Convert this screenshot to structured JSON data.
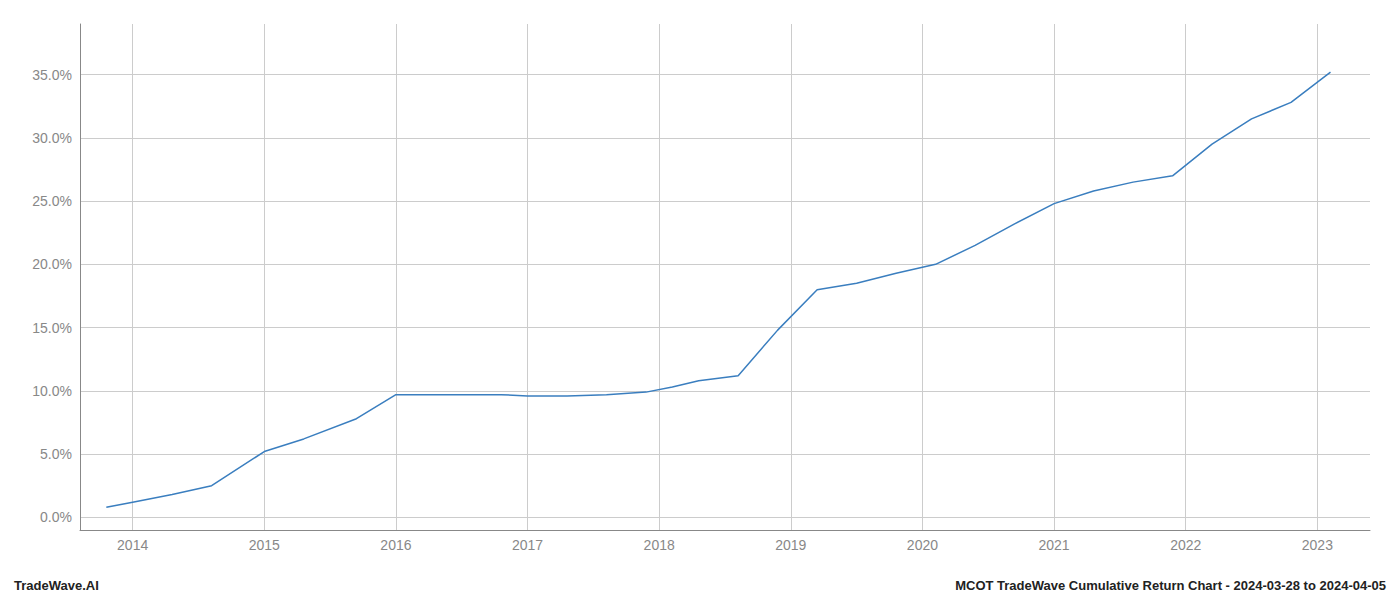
{
  "chart_data": {
    "type": "line",
    "x": [
      2013.8,
      2014.0,
      2014.3,
      2014.6,
      2015.0,
      2015.3,
      2015.7,
      2016.0,
      2016.2,
      2016.5,
      2016.8,
      2017.0,
      2017.3,
      2017.6,
      2017.9,
      2018.1,
      2018.3,
      2018.6,
      2018.9,
      2019.2,
      2019.5,
      2019.8,
      2020.1,
      2020.4,
      2020.7,
      2021.0,
      2021.3,
      2021.6,
      2021.9,
      2022.2,
      2022.5,
      2022.8,
      2023.1
    ],
    "values": [
      0.008,
      0.012,
      0.018,
      0.025,
      0.052,
      0.062,
      0.078,
      0.097,
      0.097,
      0.097,
      0.097,
      0.096,
      0.096,
      0.097,
      0.099,
      0.103,
      0.108,
      0.112,
      0.148,
      0.18,
      0.185,
      0.193,
      0.2,
      0.215,
      0.232,
      0.248,
      0.258,
      0.265,
      0.27,
      0.295,
      0.315,
      0.328,
      0.352
    ],
    "color": "#3a7ebf",
    "xlim": [
      2013.6,
      2023.4
    ],
    "ylim": [
      -0.01,
      0.39
    ],
    "xticks": [
      2014,
      2015,
      2016,
      2017,
      2018,
      2019,
      2020,
      2021,
      2022,
      2023
    ],
    "yticks": [
      {
        "value": 0.0,
        "label": "0.0%"
      },
      {
        "value": 0.05,
        "label": "5.0%"
      },
      {
        "value": 0.1,
        "label": "10.0%"
      },
      {
        "value": 0.15,
        "label": "15.0%"
      },
      {
        "value": 0.2,
        "label": "20.0%"
      },
      {
        "value": 0.25,
        "label": "25.0%"
      },
      {
        "value": 0.3,
        "label": "30.0%"
      },
      {
        "value": 0.35,
        "label": "35.0%"
      }
    ],
    "grid": true,
    "annotations": [
      "TradeWave.AI",
      "MCOT TradeWave Cumulative Return Chart - 2024-03-28 to 2024-04-05"
    ]
  }
}
